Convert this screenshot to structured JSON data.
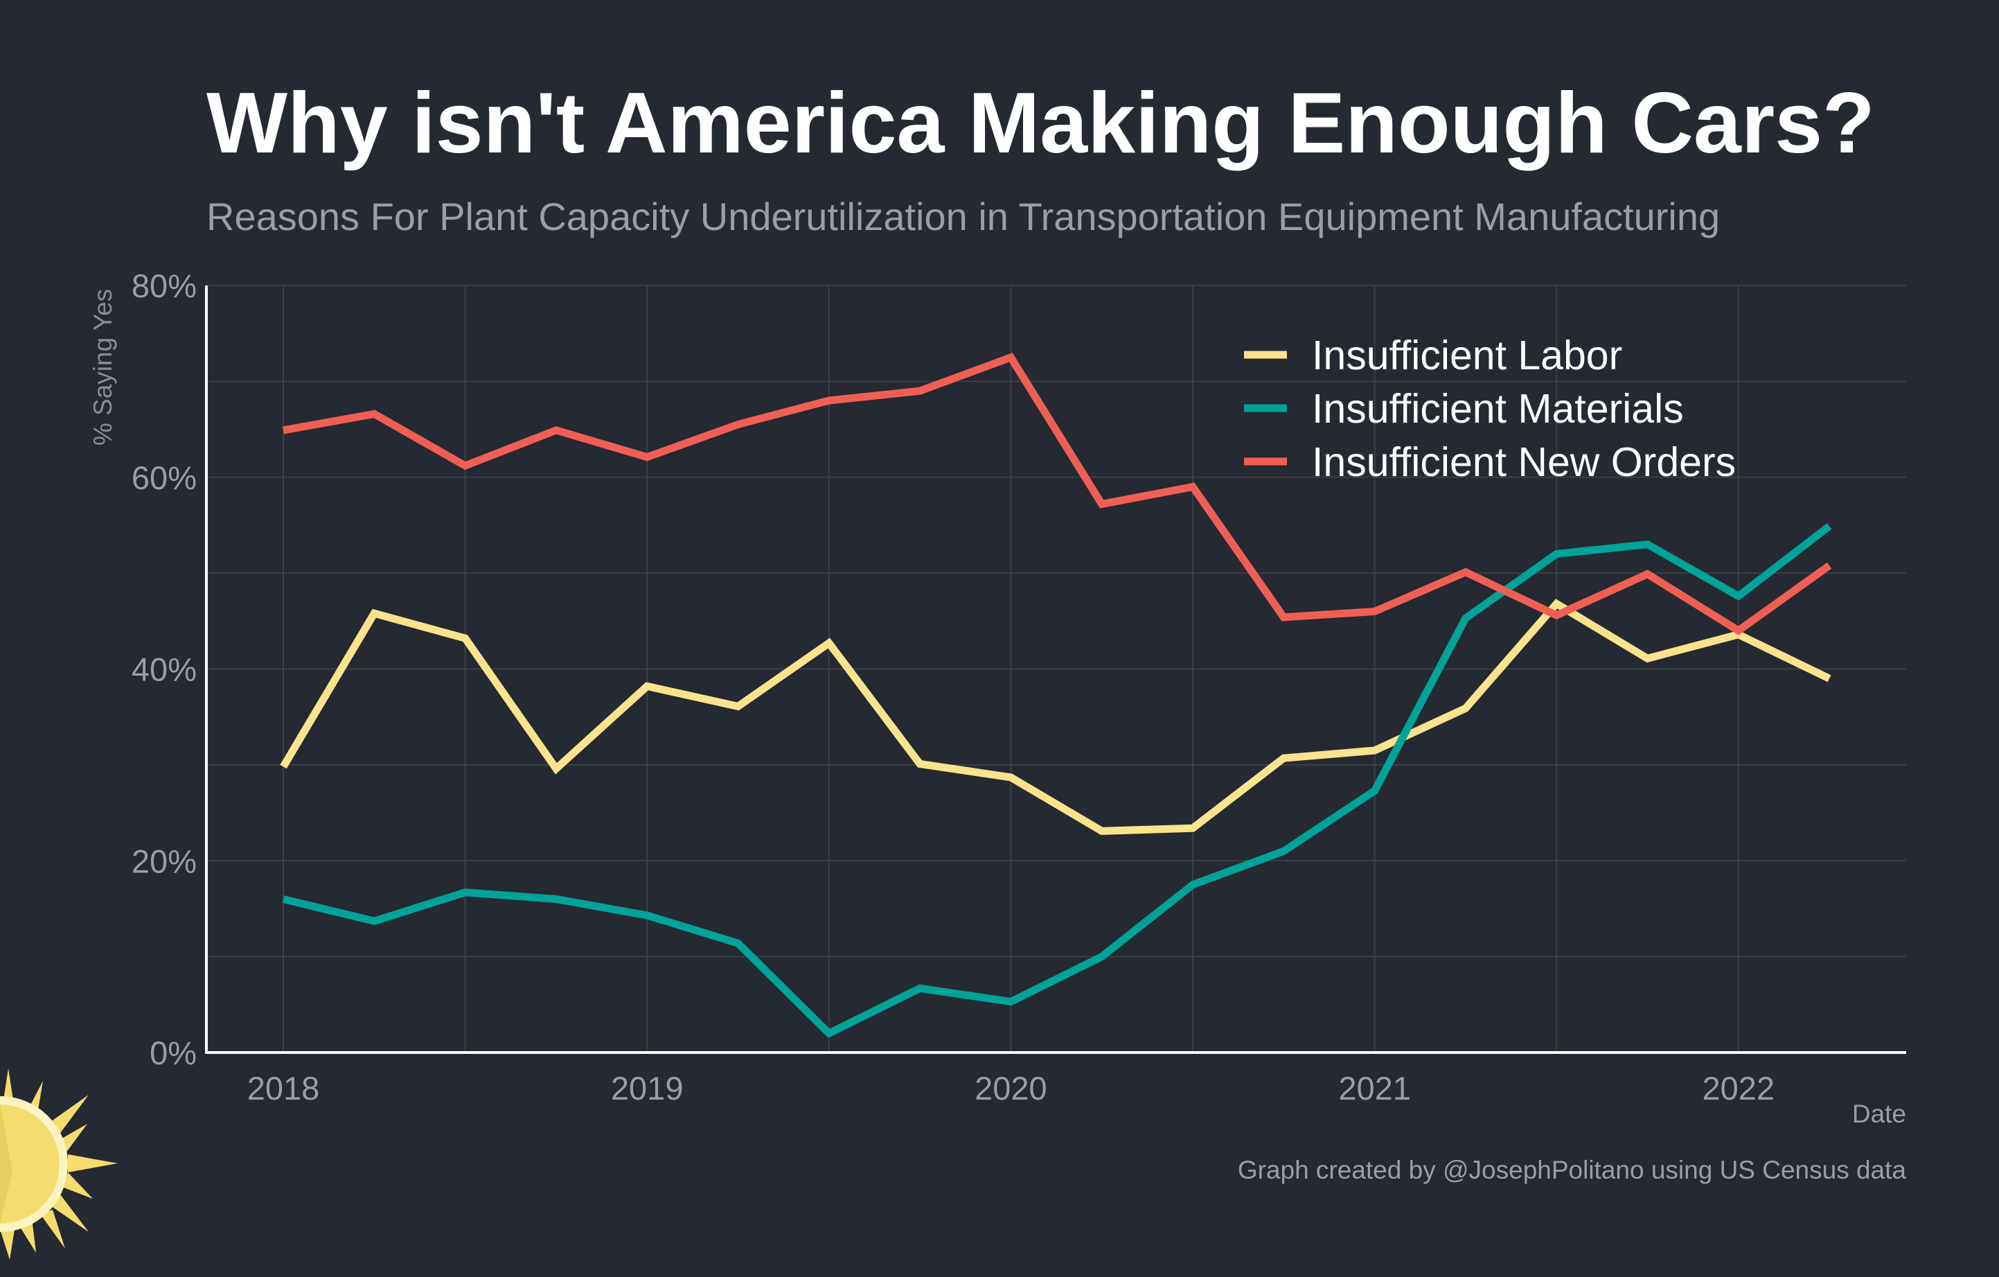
{
  "title": "Why isn't America Making Enough Cars?",
  "subtitle": "Reasons For Plant Capacity Underutilization in Transportation Equipment Manufacturing",
  "caption": "Graph created by @JosephPolitano using US Census data",
  "colors": {
    "background": "#252932",
    "grid": "#3b3f48",
    "axis": "#ffffff",
    "muted_text": "#9a9ea6",
    "labor": "#fbe38e",
    "materials": "#00a398",
    "new_orders": "#ef5f54",
    "logo_sun": "#f4dc6e"
  },
  "logo": {
    "icon": "sun-icon"
  },
  "chart_data": {
    "type": "line",
    "title": "Why isn't America Making Enough Cars?",
    "subtitle": "Reasons For Plant Capacity Underutilization in Transportation Equipment Manufacturing",
    "xlabel": "Date",
    "ylabel": "% Saying Yes",
    "x": [
      "2018-Q1",
      "2018-Q2",
      "2018-Q3",
      "2018-Q4",
      "2019-Q1",
      "2019-Q2",
      "2019-Q3",
      "2019-Q4",
      "2020-Q1",
      "2020-Q2",
      "2020-Q3",
      "2020-Q4",
      "2021-Q1",
      "2021-Q2",
      "2021-Q3",
      "2021-Q4",
      "2022-Q1",
      "2022-Q2"
    ],
    "x_ticks": [
      "2018",
      "2019",
      "2020",
      "2021",
      "2022"
    ],
    "y_ticks": [
      "0%",
      "20%",
      "40%",
      "60%",
      "80%"
    ],
    "ylim": [
      0,
      80
    ],
    "grid": true,
    "legend_position": "top-right",
    "series": [
      {
        "name": "Insufficient Labor",
        "color": "#fbe38e",
        "values": [
          29.8,
          45.8,
          43.2,
          29.6,
          38.2,
          36.1,
          42.7,
          30.1,
          28.7,
          23.1,
          23.4,
          30.7,
          31.5,
          35.9,
          46.8,
          41.1,
          43.6,
          39.0
        ]
      },
      {
        "name": "Insufficient Materials",
        "color": "#00a398",
        "values": [
          16.0,
          13.7,
          16.7,
          16.0,
          14.3,
          11.4,
          2.0,
          6.7,
          5.3,
          10.0,
          17.5,
          21.0,
          27.3,
          45.3,
          52.0,
          53.0,
          47.6,
          54.9
        ]
      },
      {
        "name": "Insufficient New Orders",
        "color": "#ef5f54",
        "values": [
          64.9,
          66.6,
          61.2,
          64.9,
          62.1,
          65.5,
          68.0,
          69.0,
          72.5,
          57.2,
          59.0,
          45.4,
          46.0,
          50.1,
          45.6,
          49.9,
          44.0,
          50.8
        ]
      }
    ]
  }
}
